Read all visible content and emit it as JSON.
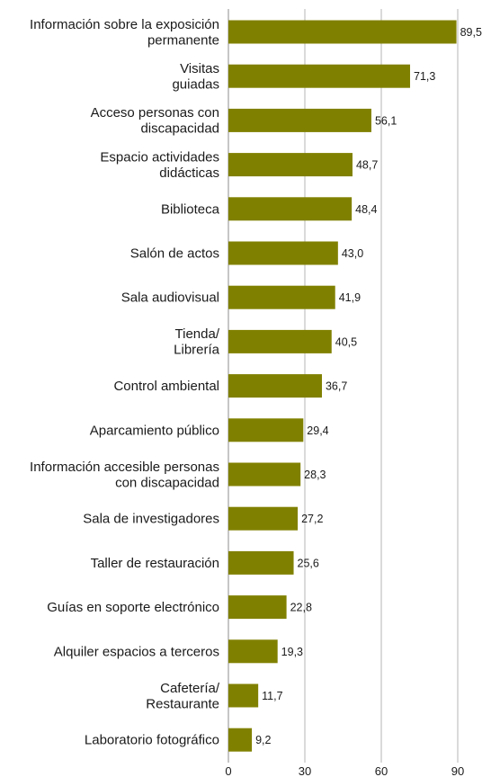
{
  "chart_data": {
    "type": "bar",
    "orientation": "horizontal",
    "title": "",
    "xlabel": "",
    "ylabel": "",
    "xlim": [
      0,
      90
    ],
    "x_ticks": [
      0,
      30,
      60,
      90
    ],
    "x_tick_labels": [
      "0",
      "30",
      "60",
      "90"
    ],
    "grid": true,
    "bar_color": "#808000",
    "categories": [
      [
        "Información sobre la exposición",
        "permanente"
      ],
      [
        "Visitas",
        "guiadas"
      ],
      [
        "Acceso personas con",
        "discapacidad"
      ],
      [
        "Espacio actividades",
        "didácticas"
      ],
      [
        "Biblioteca"
      ],
      [
        "Salón de actos"
      ],
      [
        "Sala audiovisual"
      ],
      [
        "Tienda/",
        "Librería"
      ],
      [
        "Control ambiental"
      ],
      [
        "Aparcamiento público"
      ],
      [
        "Información accesible personas",
        "con discapacidad"
      ],
      [
        "Sala de investigadores"
      ],
      [
        "Taller de restauración"
      ],
      [
        "Guías en soporte electrónico"
      ],
      [
        "Alquiler espacios a terceros"
      ],
      [
        "Cafetería/",
        "Restaurante"
      ],
      [
        "Laboratorio fotográfico"
      ]
    ],
    "values": [
      89.5,
      71.3,
      56.1,
      48.7,
      48.4,
      43.0,
      41.9,
      40.5,
      36.7,
      29.4,
      28.3,
      27.2,
      25.6,
      22.8,
      19.3,
      11.7,
      9.2
    ],
    "value_labels": [
      "89,5",
      "71,3",
      "56,1",
      "48,7",
      "48,4",
      "43,0",
      "41,9",
      "40,5",
      "36,7",
      "29,4",
      "28,3",
      "27,2",
      "25,6",
      "22,8",
      "19,3",
      "11,7",
      "9,2"
    ]
  }
}
